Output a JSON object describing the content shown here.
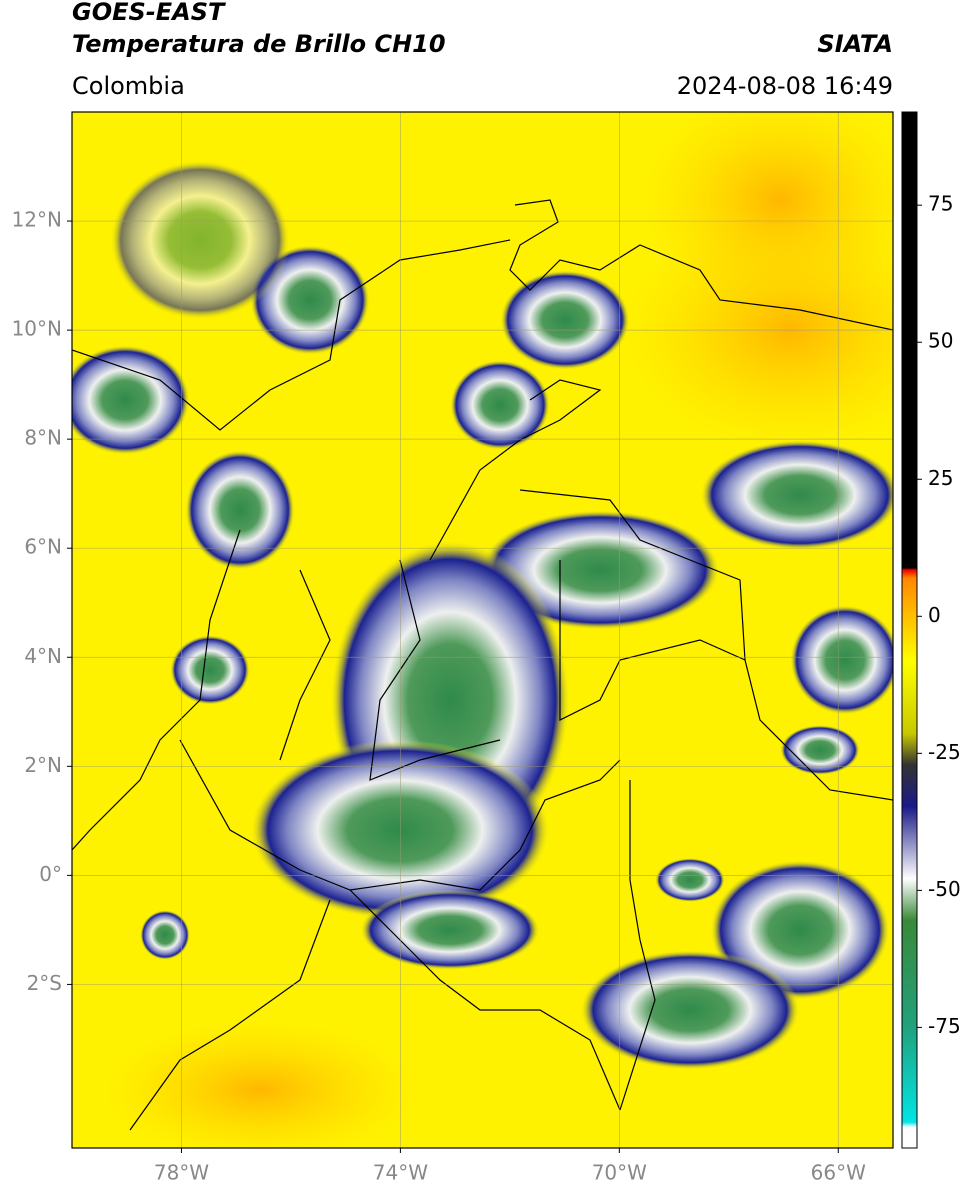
{
  "header": {
    "satellite": "GOES-EAST",
    "product": "Temperatura de Brillo CH10",
    "source": "SIATA",
    "region": "Colombia",
    "datetime": "2024-08-08 16:49"
  },
  "map": {
    "lon_lim": [
      -80,
      -65
    ],
    "lat_lim": [
      -5,
      14
    ],
    "lon_ticks": [
      {
        "value": -78,
        "label": "78°W"
      },
      {
        "value": -74,
        "label": "74°W"
      },
      {
        "value": -70,
        "label": "70°W"
      },
      {
        "value": -66,
        "label": "66°W"
      }
    ],
    "lat_ticks": [
      {
        "value": 12,
        "label": "12°N"
      },
      {
        "value": 10,
        "label": "10°N"
      },
      {
        "value": 8,
        "label": "8°N"
      },
      {
        "value": 6,
        "label": "6°N"
      },
      {
        "value": 4,
        "label": "4°N"
      },
      {
        "value": 2,
        "label": "2°N"
      },
      {
        "value": 0,
        "label": "0°"
      },
      {
        "value": -2,
        "label": "2°S"
      }
    ]
  },
  "colorbar": {
    "lim": [
      -97,
      92
    ],
    "ticks": [
      75,
      50,
      25,
      0,
      -25,
      -50,
      -75
    ]
  }
}
